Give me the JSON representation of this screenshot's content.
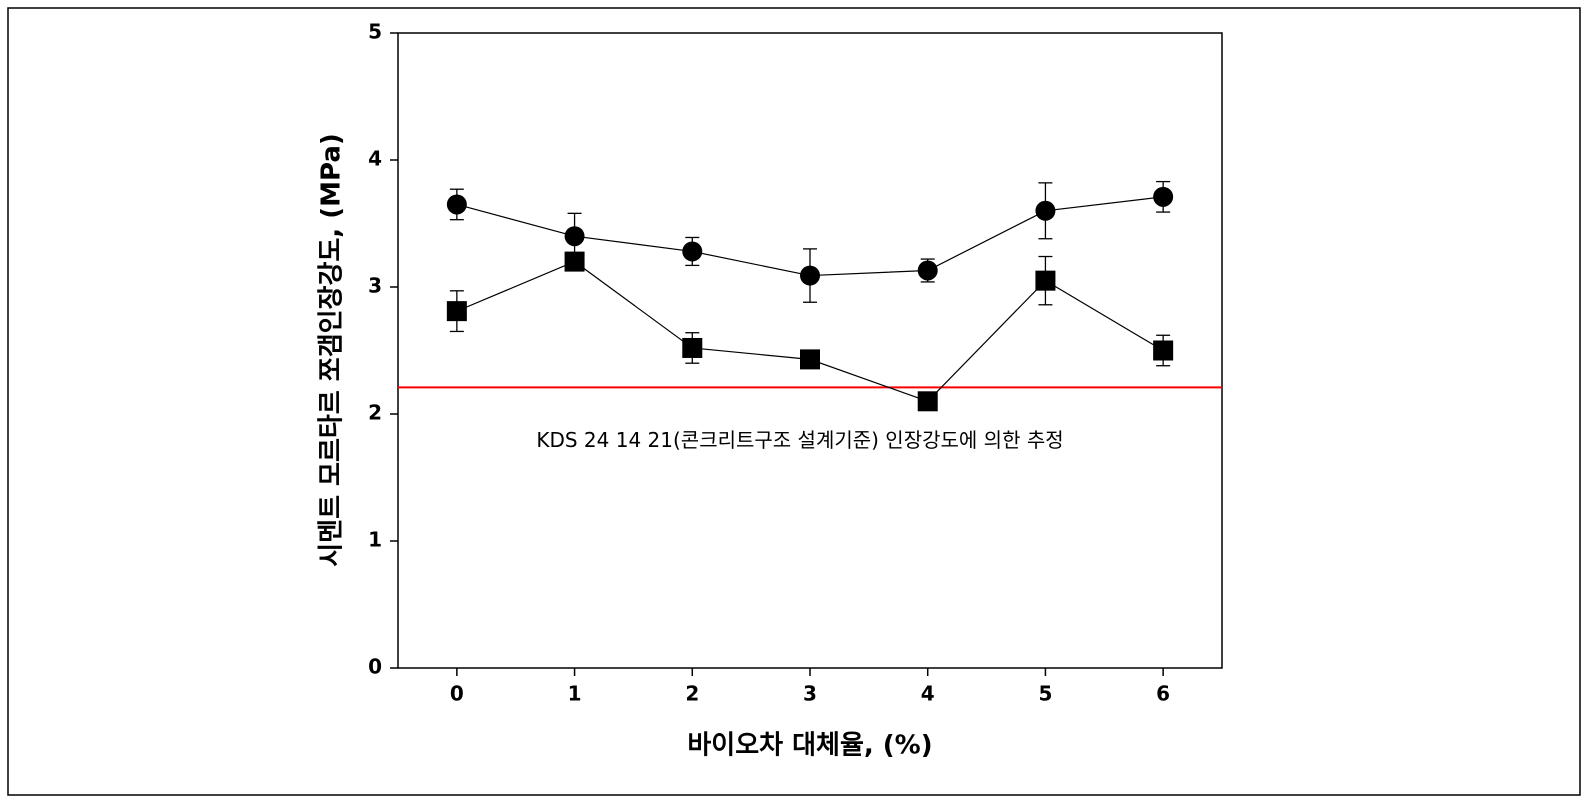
{
  "chart_data": {
    "type": "line",
    "x_label": "바이오차 대체율, (%)",
    "y_label": "시멘트 모르타르 쪼갬인장강도, (MPa)",
    "x": [
      0,
      1,
      2,
      3,
      4,
      5,
      6
    ],
    "series": [
      {
        "color": "#000000",
        "marker": "circle",
        "values": [
          3.65,
          3.4,
          3.28,
          3.09,
          3.13,
          3.6,
          3.71
        ],
        "errors": [
          0.12,
          0.18,
          0.11,
          0.21,
          0.09,
          0.22,
          0.12
        ]
      },
      {
        "color": "#000000",
        "marker": "square",
        "values": [
          2.81,
          3.2,
          2.52,
          2.43,
          2.1,
          3.05,
          2.5
        ],
        "errors": [
          0.16,
          0.03,
          0.12,
          0.04,
          0.03,
          0.19,
          0.12
        ]
      }
    ],
    "reference_line": {
      "value": 2.21,
      "color": "#ff0000",
      "label": "KDS 24 14 21(콘크리트구조 설계기준) 인장강도에 의한 추정"
    },
    "xlim": [
      -0.5,
      6.5
    ],
    "xticks": [
      0,
      1,
      2,
      3,
      4,
      5,
      6
    ],
    "ylim": [
      0,
      5
    ],
    "yticks": [
      0,
      1,
      2,
      3,
      4,
      5
    ],
    "grid": false
  }
}
